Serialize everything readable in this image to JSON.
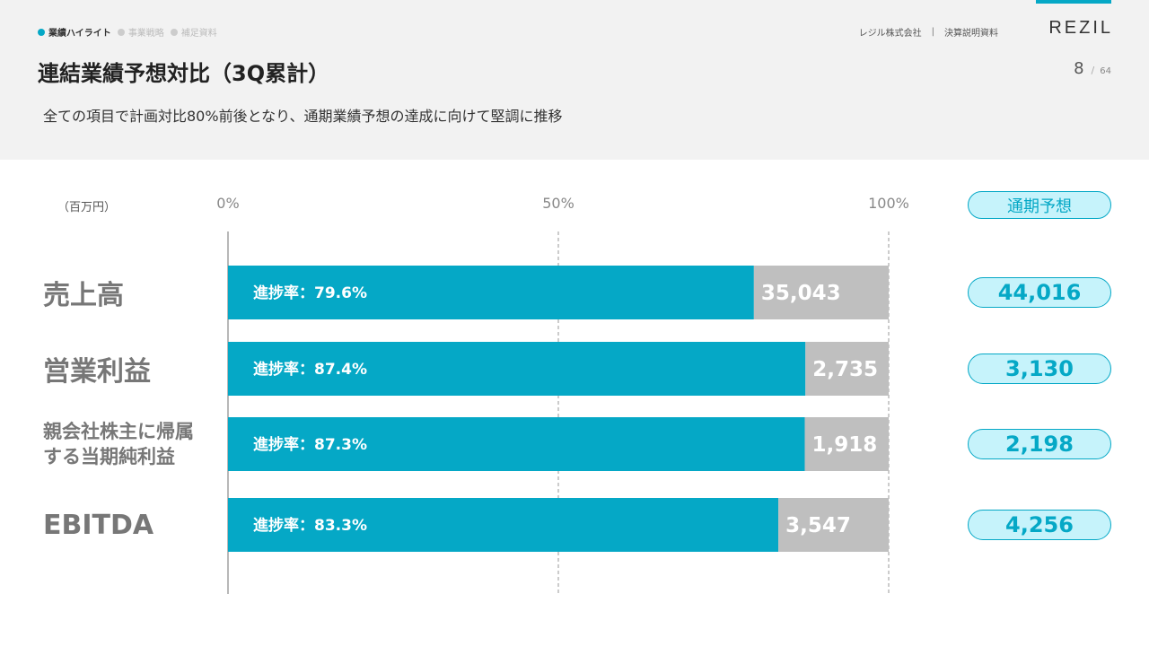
{
  "nav": {
    "breadcrumb": [
      "業績ハイライト",
      "事業戦略",
      "補足資料"
    ],
    "company": "レジル株式会社",
    "doc": "決算説明資料",
    "logo": "REZIL",
    "page_current": "8",
    "page_sep": "/",
    "page_total": "64"
  },
  "title": "連結業績予想対比（3Q累計）",
  "subtitle": "全ての項目で計画対比80%前後となり、通期業績予想の達成に向けて堅調に推移",
  "unit": "（百万円）",
  "forecast_header": "通期予想",
  "colors": {
    "accent": "#05a8c6",
    "remaining": "#bfbfbf",
    "pill_bg": "#c6f3fb"
  },
  "chart_data": {
    "type": "bar",
    "orientation": "horizontal",
    "xlim": [
      0,
      100
    ],
    "ticks": [
      "0%",
      "50%",
      "100%"
    ],
    "grid": true,
    "categories": [
      "売上高",
      "営業利益",
      "親会社株主に帰属する当期純利益",
      "EBITDA"
    ],
    "category_lines": [
      [
        "売上高"
      ],
      [
        "営業利益"
      ],
      [
        "親会社株主に帰属",
        "する当期純利益"
      ],
      [
        "EBITDA"
      ]
    ],
    "progress_pct": [
      79.6,
      87.4,
      87.3,
      83.3
    ],
    "progress_labels": [
      "進捗率：79.6%",
      "進捗率：87.4%",
      "進捗率：87.3%",
      "進捗率：83.3%"
    ],
    "actual_labels": [
      "35,043",
      "2,735",
      "1,918",
      "3,547"
    ],
    "forecast_labels": [
      "44,016",
      "3,130",
      "2,198",
      "4,256"
    ]
  }
}
